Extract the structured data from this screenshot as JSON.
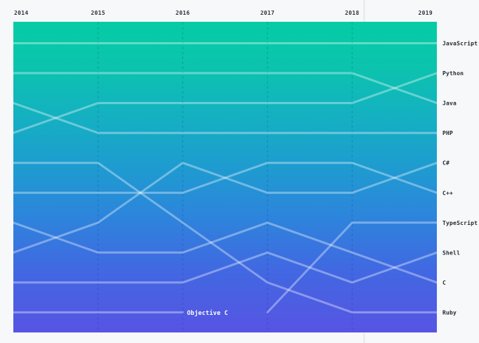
{
  "chart_data": {
    "type": "line",
    "variant": "bump-rank-over-time",
    "title": "",
    "x_labels": [
      "2014",
      "2015",
      "2016",
      "2017",
      "2018",
      "2019"
    ],
    "y_axis": "rank (1 = top, 10 = bottom)",
    "ylim": [
      1,
      10
    ],
    "grid": "dashed-vertical-per-year",
    "legend_position": "right-edge-labels",
    "series": [
      {
        "name": "JavaScript",
        "ranks": [
          1,
          1,
          1,
          1,
          1,
          1
        ]
      },
      {
        "name": "Python",
        "ranks": [
          4,
          3,
          3,
          3,
          3,
          2
        ]
      },
      {
        "name": "Java",
        "ranks": [
          2,
          2,
          2,
          2,
          2,
          3
        ]
      },
      {
        "name": "PHP",
        "ranks": [
          3,
          4,
          4,
          4,
          4,
          4
        ]
      },
      {
        "name": "C#",
        "ranks": [
          8,
          7,
          5,
          6,
          6,
          5
        ]
      },
      {
        "name": "C++",
        "ranks": [
          6,
          6,
          6,
          5,
          5,
          6
        ]
      },
      {
        "name": "TypeScript",
        "ranks": [
          null,
          null,
          null,
          10,
          7,
          7
        ]
      },
      {
        "name": "Shell",
        "ranks": [
          9,
          9,
          9,
          8,
          9,
          8
        ]
      },
      {
        "name": "C",
        "ranks": [
          7,
          8,
          8,
          7,
          8,
          9
        ]
      },
      {
        "name": "Ruby",
        "ranks": [
          5,
          5,
          7,
          9,
          10,
          10
        ]
      },
      {
        "name": "Objective C",
        "ranks": [
          10,
          10,
          10,
          null,
          null,
          null
        ],
        "inline_label": true
      }
    ]
  },
  "colors": {
    "page_bg": "#f6f8fa",
    "gradient": [
      [
        "0%",
        "#05CCA5"
      ],
      [
        "14%",
        "#0BC4AD"
      ],
      [
        "30%",
        "#14B1C1"
      ],
      [
        "48%",
        "#1F9AD1"
      ],
      [
        "62%",
        "#2C86DB"
      ],
      [
        "80%",
        "#4168E2"
      ],
      [
        "100%",
        "#5754E3"
      ]
    ],
    "series_line": "rgba(255,255,255,0.36)",
    "grid_line": "rgba(8,40,120,0.18)",
    "year_label": "#2f363d",
    "lang_label": "#24292e",
    "inline_label": "#ffffff",
    "divider": "#e4e7ea"
  }
}
